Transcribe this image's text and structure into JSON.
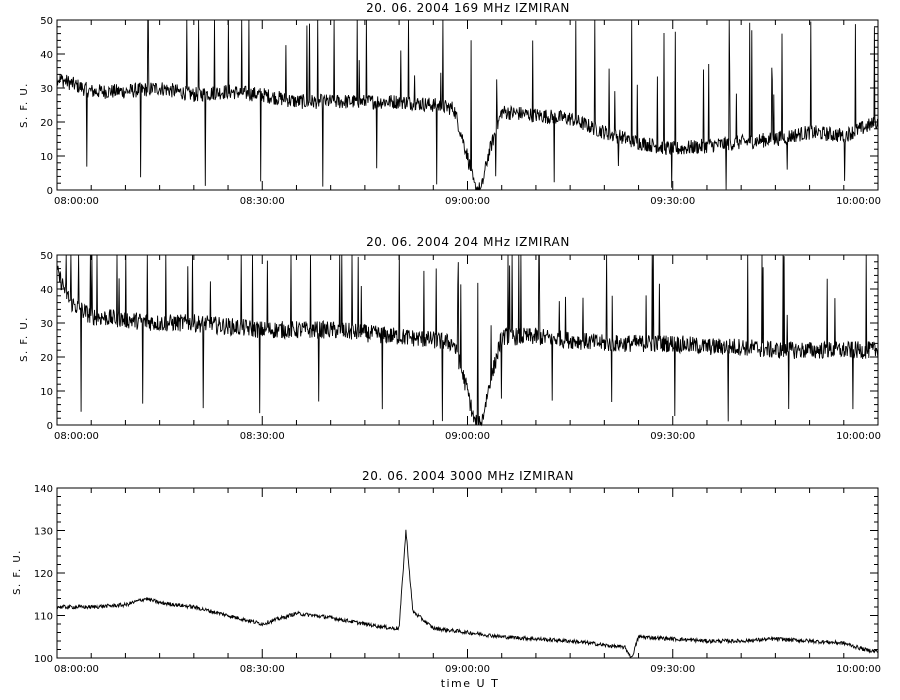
{
  "chart_data": [
    {
      "type": "line",
      "title": "20.  06.  2004    169  MHz     IZMIRAN",
      "ylabel": "S.  F.  U.",
      "xlabel": "",
      "xlim": [
        "08:00:00",
        "10:00:00"
      ],
      "ylim": [
        0,
        50
      ],
      "x_ticks": [
        "08:00:00",
        "08:30:00",
        "09:00:00",
        "09:30:00",
        "10:00:00"
      ],
      "y_ticks": [
        "0",
        "10",
        "20",
        "30",
        "40",
        "50"
      ],
      "grid": false,
      "series": [
        {
          "x": [
            "08:00:00",
            "08:05:00",
            "08:10:00",
            "08:15:00",
            "08:20:00",
            "08:25:00",
            "08:30:00",
            "08:35:00",
            "08:40:00",
            "08:45:00",
            "08:50:00",
            "08:55:00",
            "08:58:00",
            "09:00:00",
            "09:01:00",
            "09:02:00",
            "09:03:00",
            "09:05:00",
            "09:10:00",
            "09:15:00",
            "09:20:00",
            "09:25:00",
            "09:30:00",
            "09:35:00",
            "09:40:00",
            "09:45:00",
            "09:50:00",
            "09:55:00",
            "10:00:00"
          ],
          "values": [
            33,
            29,
            29,
            30,
            28,
            29,
            28,
            26,
            26,
            26,
            26,
            25,
            24,
            10,
            1,
            0,
            10,
            23,
            22,
            21,
            17,
            14,
            12,
            13,
            14,
            15,
            17,
            16,
            20
          ]
        }
      ]
    },
    {
      "type": "line",
      "title": "20.  06.  2004    204  MHz     IZMIRAN",
      "ylabel": "S.  F.  U.",
      "xlabel": "",
      "xlim": [
        "08:00:00",
        "10:00:00"
      ],
      "ylim": [
        0,
        50
      ],
      "x_ticks": [
        "08:00:00",
        "08:30:00",
        "09:00:00",
        "09:30:00",
        "10:00:00"
      ],
      "y_ticks": [
        "0",
        "10",
        "20",
        "30",
        "40",
        "50"
      ],
      "grid": false,
      "series": [
        {
          "x": [
            "08:00:00",
            "08:02:00",
            "08:05:00",
            "08:10:00",
            "08:15:00",
            "08:20:00",
            "08:25:00",
            "08:30:00",
            "08:35:00",
            "08:40:00",
            "08:45:00",
            "08:50:00",
            "08:55:00",
            "08:58:00",
            "09:00:00",
            "09:01:00",
            "09:02:00",
            "09:03:00",
            "09:05:00",
            "09:10:00",
            "09:15:00",
            "09:20:00",
            "09:25:00",
            "09:30:00",
            "09:35:00",
            "09:40:00",
            "09:45:00",
            "09:50:00",
            "09:55:00",
            "10:00:00"
          ],
          "values": [
            45,
            36,
            32,
            31,
            30,
            30,
            29,
            28,
            28,
            28,
            27,
            26,
            25,
            24,
            10,
            1,
            0,
            10,
            26,
            26,
            25,
            24,
            24,
            24,
            23,
            23,
            22,
            22,
            22,
            22
          ]
        }
      ]
    },
    {
      "type": "line",
      "title": "20.  06.  2004    3000  MHz     IZMIRAN",
      "ylabel": "S.  F.  U.",
      "xlabel": "time   U T",
      "xlim": [
        "08:00:00",
        "10:00:00"
      ],
      "ylim": [
        100,
        140
      ],
      "x_ticks": [
        "08:00:00",
        "08:30:00",
        "09:00:00",
        "09:30:00",
        "10:00:00"
      ],
      "y_ticks": [
        "100",
        "110",
        "120",
        "130",
        "140"
      ],
      "grid": false,
      "series": [
        {
          "x": [
            "08:00:00",
            "08:05:00",
            "08:10:00",
            "08:13:00",
            "08:15:00",
            "08:20:00",
            "08:25:00",
            "08:30:00",
            "08:35:00",
            "08:40:00",
            "08:45:00",
            "08:49:00",
            "08:50:00",
            "08:51:00",
            "08:52:00",
            "08:55:00",
            "09:00:00",
            "09:05:00",
            "09:10:00",
            "09:15:00",
            "09:18:00",
            "09:20:00",
            "09:23:00",
            "09:24:00",
            "09:25:00",
            "09:30:00",
            "09:35:00",
            "09:40:00",
            "09:45:00",
            "09:50:00",
            "09:55:00",
            "09:58:00",
            "10:00:00"
          ],
          "values": [
            112,
            112,
            112.5,
            114,
            113,
            112,
            110,
            108,
            110.5,
            109.5,
            108,
            107,
            107,
            130,
            111,
            107,
            106,
            105,
            104.5,
            104,
            103.5,
            103,
            102.5,
            100,
            105,
            104.5,
            104,
            104,
            104.5,
            104,
            103.5,
            102,
            101.5
          ]
        }
      ]
    }
  ]
}
